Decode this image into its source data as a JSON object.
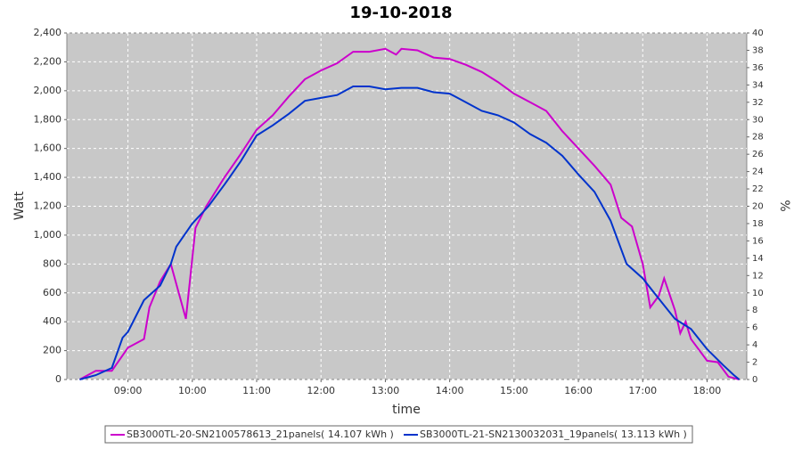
{
  "chart_data": {
    "type": "line",
    "title": "19-10-2018",
    "xlabel": "time",
    "ylabel": "Watt",
    "y2label": "%",
    "xlim": [
      "08:03",
      "18:37"
    ],
    "xticks": [
      "09:00",
      "10:00",
      "11:00",
      "12:00",
      "13:00",
      "14:00",
      "15:00",
      "16:00",
      "17:00",
      "18:00"
    ],
    "ylim": [
      0,
      2400
    ],
    "yticks": [
      0,
      200,
      400,
      600,
      800,
      {
        "value": 1000,
        "label": "1,000"
      },
      {
        "value": 1200,
        "label": "1,200"
      },
      {
        "value": 1400,
        "label": "1,400"
      },
      {
        "value": 1600,
        "label": "1,600"
      },
      {
        "value": 1800,
        "label": "1,800"
      },
      {
        "value": 2000,
        "label": "2,000"
      },
      {
        "value": 2200,
        "label": "2,200"
      },
      {
        "value": 2400,
        "label": "2,400"
      }
    ],
    "y2lim": [
      0,
      40
    ],
    "y2ticks": [
      0,
      2,
      4,
      6,
      8,
      10,
      12,
      14,
      16,
      18,
      20,
      22,
      24,
      26,
      28,
      30,
      32,
      34,
      36,
      38,
      40
    ],
    "grid": true,
    "series": [
      {
        "name": "SB3000TL-20-SN2100578613_21panels( 14.107 kWh )",
        "color": "#cc00cc",
        "x": [
          "08:15",
          "08:30",
          "08:45",
          "09:00",
          "09:15",
          "09:20",
          "09:30",
          "09:40",
          "09:54",
          "10:03",
          "10:13",
          "10:30",
          "10:45",
          "11:00",
          "11:15",
          "11:30",
          "11:45",
          "12:00",
          "12:15",
          "12:30",
          "12:45",
          "13:00",
          "13:10",
          "13:15",
          "13:30",
          "13:45",
          "14:00",
          "14:15",
          "14:30",
          "14:45",
          "15:00",
          "15:15",
          "15:30",
          "15:45",
          "16:00",
          "16:15",
          "16:30",
          "16:40",
          "16:50",
          "17:00",
          "17:07",
          "17:15",
          "17:20",
          "17:30",
          "17:35",
          "17:40",
          "17:45",
          "18:00",
          "18:10",
          "18:20",
          "18:30"
        ],
        "values": [
          0,
          60,
          60,
          220,
          280,
          500,
          680,
          800,
          420,
          1050,
          1200,
          1400,
          1560,
          1730,
          1830,
          1960,
          2080,
          2140,
          2190,
          2270,
          2270,
          2290,
          2250,
          2290,
          2280,
          2230,
          2220,
          2180,
          2130,
          2060,
          1980,
          1920,
          1860,
          1720,
          1600,
          1480,
          1350,
          1120,
          1060,
          800,
          500,
          580,
          700,
          480,
          320,
          400,
          280,
          130,
          120,
          20,
          0
        ]
      },
      {
        "name": "SB3000TL-21-SN2130032031_19panels( 13.113 kWh )",
        "color": "#0033cc",
        "x": [
          "08:15",
          "08:30",
          "08:45",
          "08:55",
          "09:00",
          "09:15",
          "09:30",
          "09:40",
          "09:45",
          "10:00",
          "10:15",
          "10:30",
          "10:45",
          "11:00",
          "11:15",
          "11:30",
          "11:45",
          "12:00",
          "12:15",
          "12:30",
          "12:45",
          "13:00",
          "13:15",
          "13:30",
          "13:45",
          "14:00",
          "14:15",
          "14:30",
          "14:45",
          "15:00",
          "15:15",
          "15:30",
          "15:45",
          "16:00",
          "16:15",
          "16:30",
          "16:45",
          "17:00",
          "17:15",
          "17:30",
          "17:45",
          "18:00",
          "18:15",
          "18:25",
          "18:30"
        ],
        "values": [
          0,
          30,
          80,
          290,
          330,
          550,
          650,
          800,
          920,
          1080,
          1200,
          1350,
          1510,
          1690,
          1760,
          1840,
          1930,
          1950,
          1970,
          2030,
          2030,
          2010,
          2020,
          2020,
          1990,
          1980,
          1920,
          1860,
          1830,
          1780,
          1700,
          1640,
          1550,
          1420,
          1300,
          1100,
          800,
          700,
          560,
          420,
          350,
          210,
          100,
          30,
          0
        ]
      }
    ]
  }
}
